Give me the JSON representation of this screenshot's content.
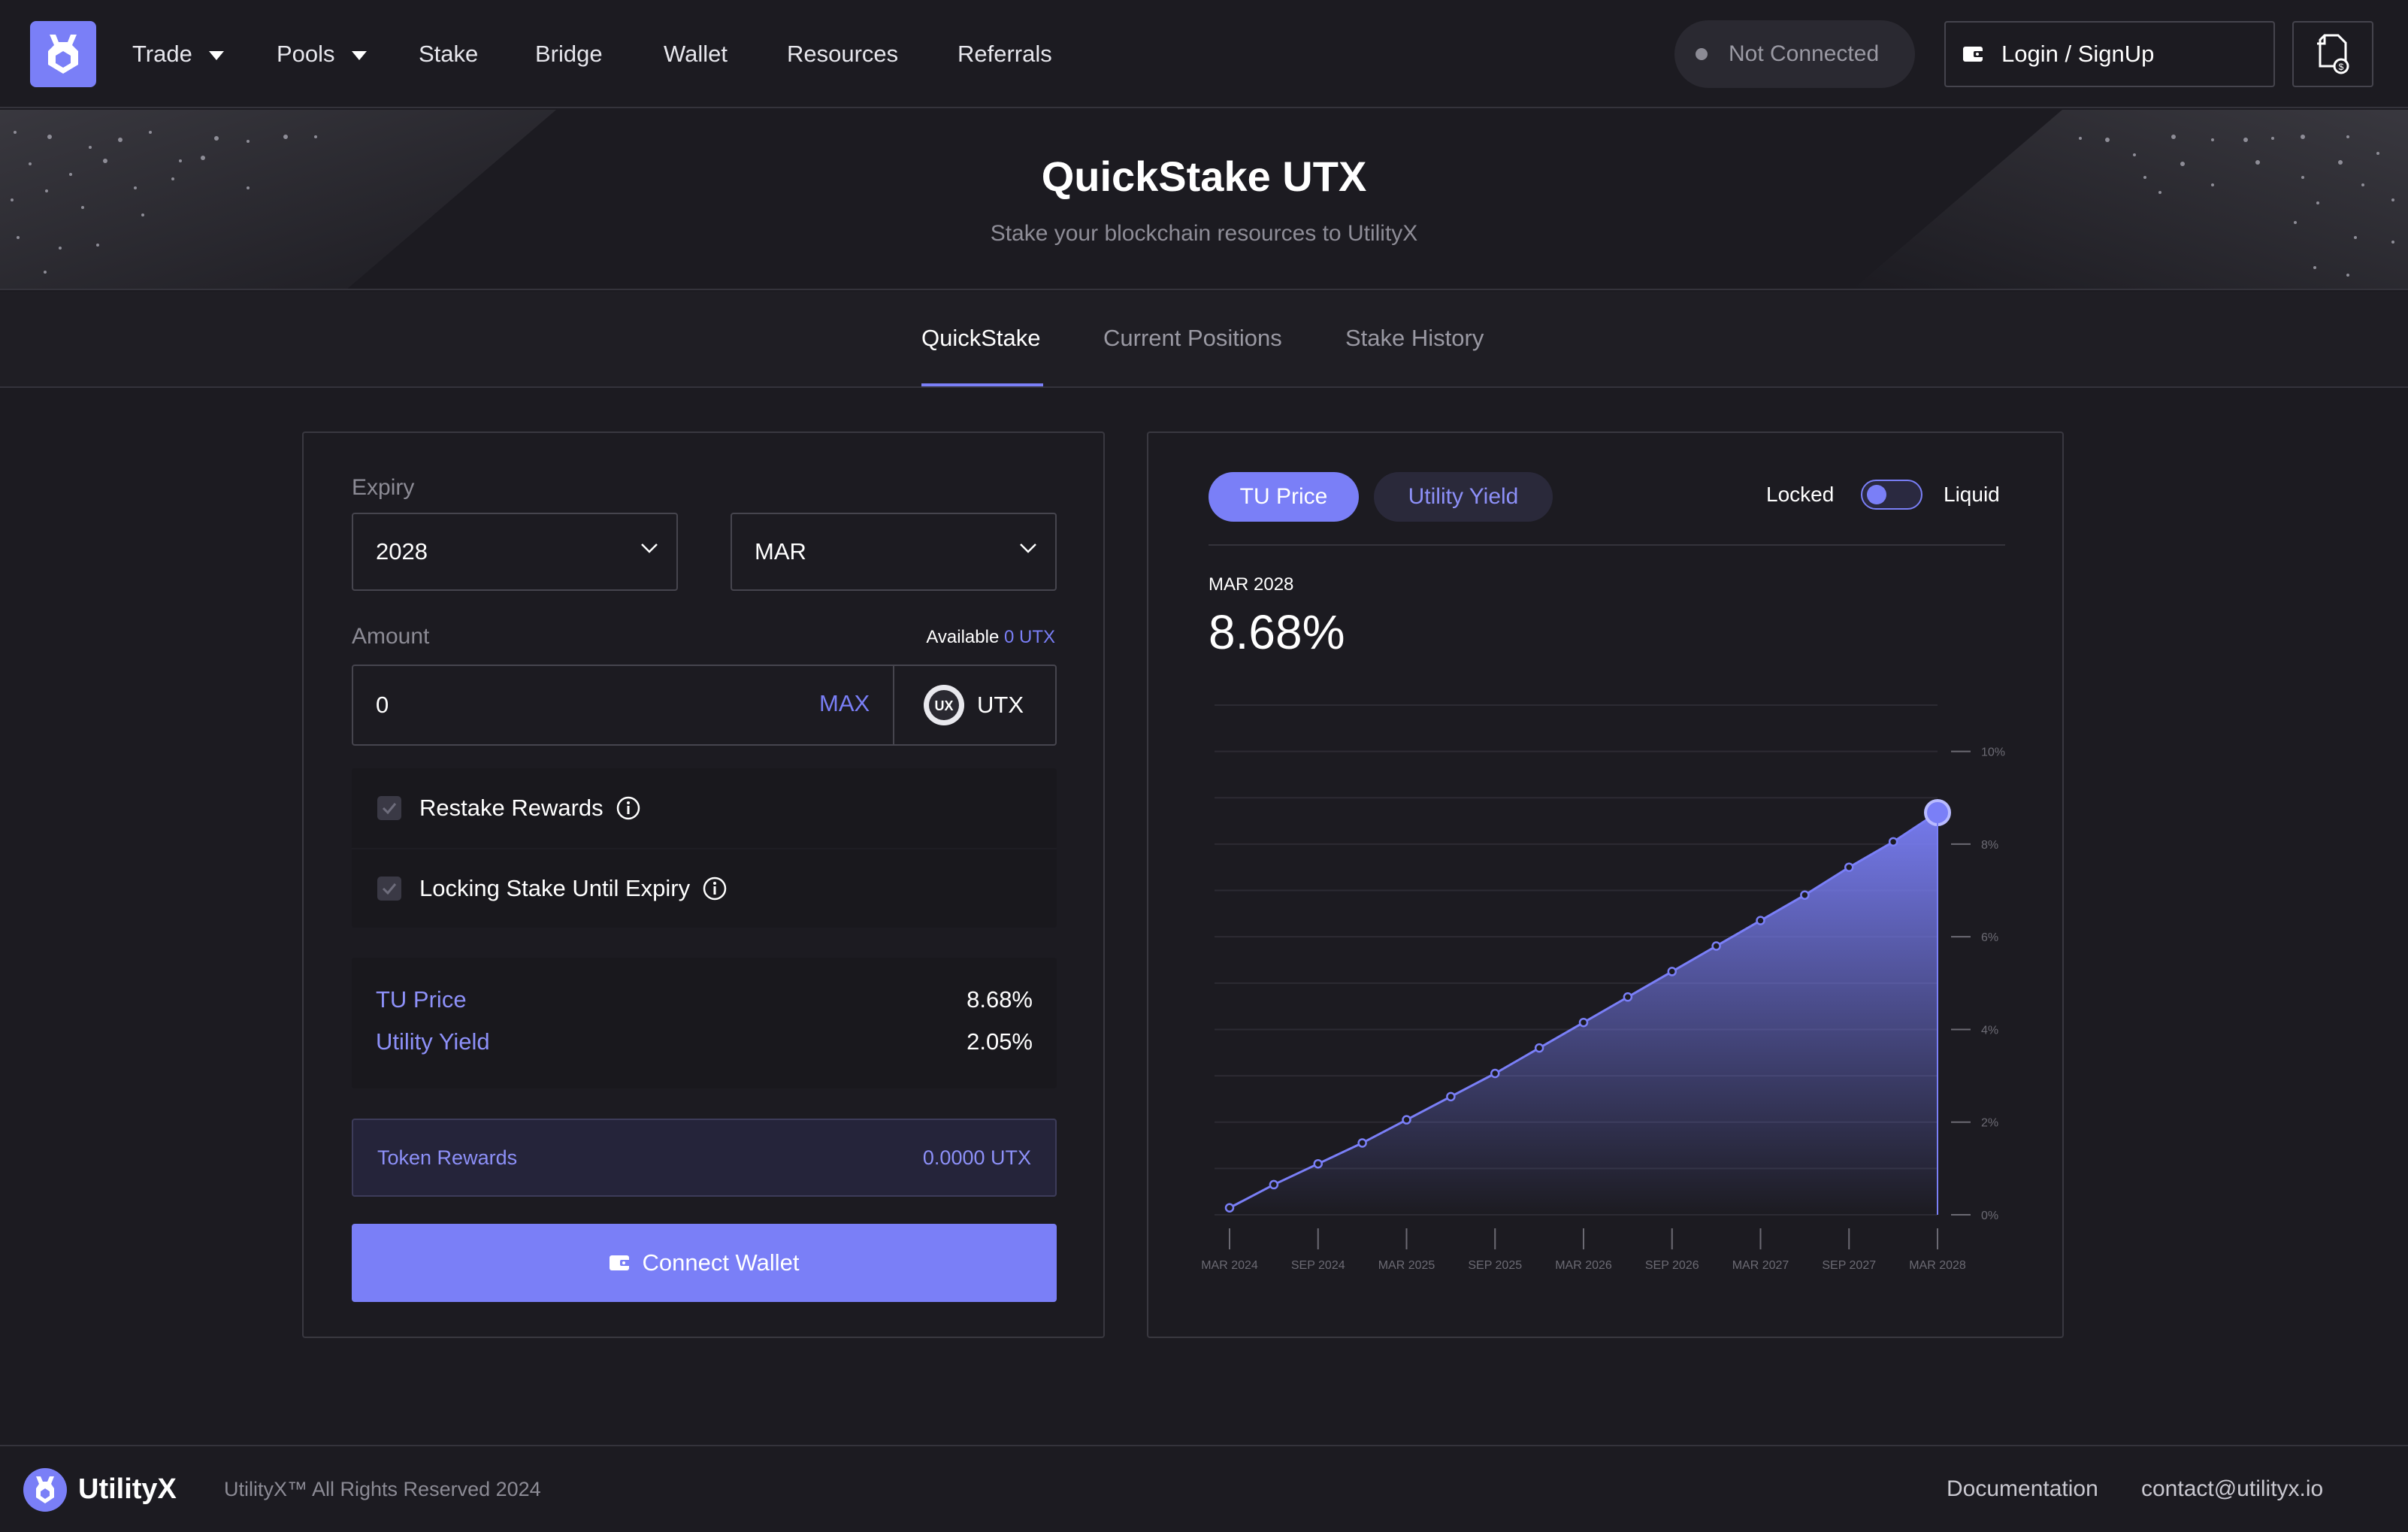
{
  "nav": {
    "items": [
      {
        "label": "Trade",
        "dropdown": true
      },
      {
        "label": "Pools",
        "dropdown": true
      },
      {
        "label": "Stake",
        "dropdown": false
      },
      {
        "label": "Bridge",
        "dropdown": false
      },
      {
        "label": "Wallet",
        "dropdown": false
      },
      {
        "label": "Resources",
        "dropdown": false
      },
      {
        "label": "Referrals",
        "dropdown": false
      }
    ],
    "status": "Not Connected",
    "login_label": "Login / SignUp"
  },
  "hero": {
    "title": "QuickStake UTX",
    "subtitle": "Stake your blockchain resources to UtilityX"
  },
  "tabs": [
    "QuickStake",
    "Current Positions",
    "Stake History"
  ],
  "form": {
    "expiry_label": "Expiry",
    "expiry_year": "2028",
    "expiry_month": "MAR",
    "amount_label": "Amount",
    "available_label": "Available",
    "available_value": "0 UTX",
    "amount_value": "0",
    "max_label": "MAX",
    "token": "UTX",
    "restake_label": "Restake Rewards",
    "locking_label": "Locking Stake Until Expiry",
    "tu_price_label": "TU Price",
    "tu_price_value": "8.68%",
    "utility_yield_label": "Utility Yield",
    "utility_yield_value": "2.05%",
    "token_rewards_label": "Token Rewards",
    "token_rewards_value": "0.0000 UTX",
    "connect_label": "Connect Wallet"
  },
  "chart_panel": {
    "toggle_tu": "TU Price",
    "toggle_yield": "Utility Yield",
    "locked_label": "Locked",
    "liquid_label": "Liquid",
    "selected_date": "MAR 2028",
    "selected_value": "8.68%"
  },
  "chart_data": {
    "type": "area",
    "x": [
      "MAR 2024",
      "JUN 2024",
      "SEP 2024",
      "DEC 2024",
      "MAR 2025",
      "JUN 2025",
      "SEP 2025",
      "DEC 2025",
      "MAR 2026",
      "JUN 2026",
      "SEP 2026",
      "DEC 2026",
      "MAR 2027",
      "JUN 2027",
      "SEP 2027",
      "DEC 2027",
      "MAR 2028"
    ],
    "values": [
      0.15,
      0.65,
      1.1,
      1.55,
      2.05,
      2.55,
      3.05,
      3.6,
      4.15,
      4.7,
      5.25,
      5.8,
      6.35,
      6.9,
      7.5,
      8.05,
      8.68
    ],
    "x_tick_labels": [
      "MAR 2024",
      "SEP 2024",
      "MAR 2025",
      "SEP 2025",
      "MAR 2026",
      "SEP 2026",
      "MAR 2027",
      "SEP 2027",
      "MAR 2028"
    ],
    "y_tick_labels": [
      "0%",
      "2%",
      "4%",
      "6%",
      "8%",
      "10%"
    ],
    "ylim": [
      0,
      11
    ],
    "grid": true,
    "accent": "#7a7ff7"
  },
  "footer": {
    "brand": "UtilityX",
    "copyright": "UtilityX™ All Rights Reserved 2024",
    "links": [
      "Documentation",
      "contact@utilityx.io"
    ]
  }
}
